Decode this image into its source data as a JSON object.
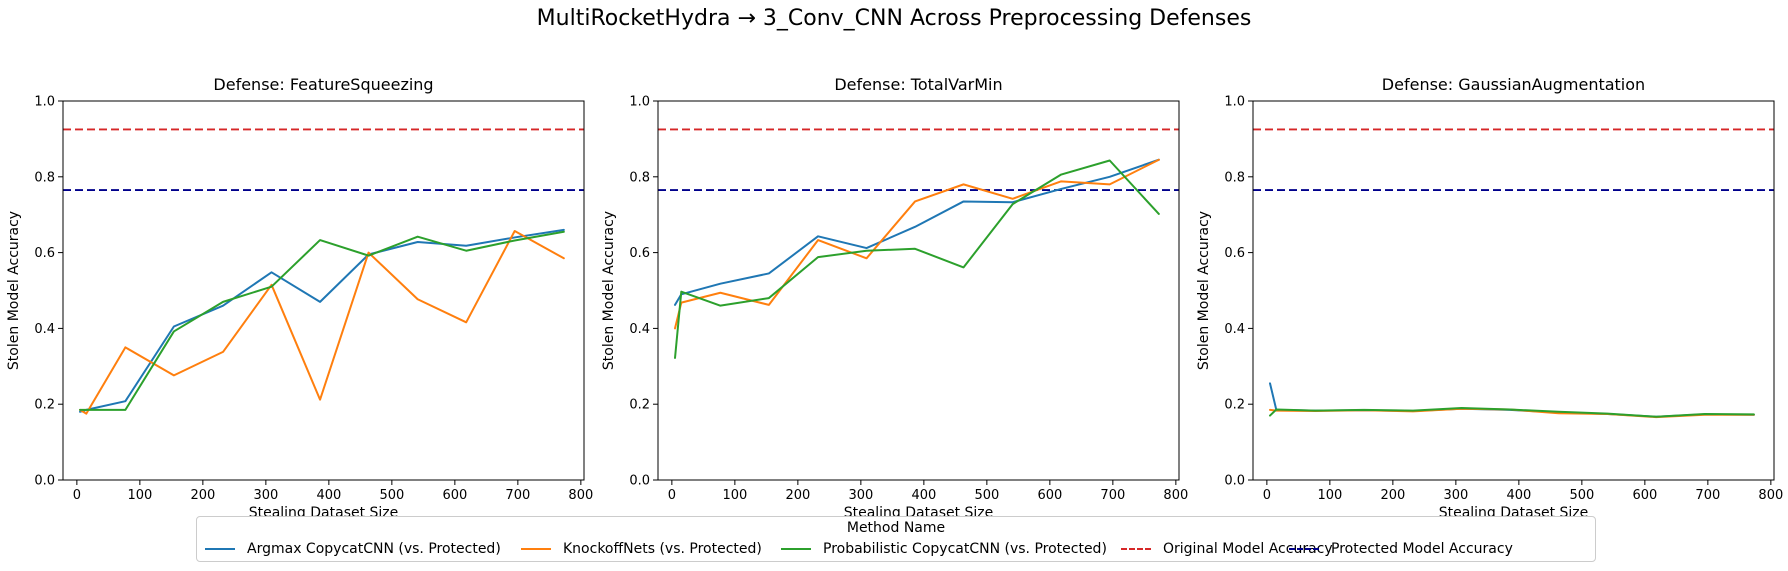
{
  "figure": {
    "suptitle": "MultiRocketHydra → 3_Conv_CNN Across Preprocessing Defenses"
  },
  "legend": {
    "title": "Method Name",
    "placement": "bottom-center",
    "entries": [
      {
        "label": "Argmax CopycatCNN (vs. Protected)",
        "color": "#1f77b4",
        "style": "solid"
      },
      {
        "label": "KnockoffNets (vs. Protected)",
        "color": "#ff7f0e",
        "style": "solid"
      },
      {
        "label": "Probabilistic CopycatCNN (vs. Protected)",
        "color": "#2ca02c",
        "style": "solid"
      },
      {
        "label": "Original Model Accuracy",
        "color": "#d62728",
        "style": "dashed"
      },
      {
        "label": "Protected Model Accuracy",
        "color": "#00008b",
        "style": "dashed"
      }
    ]
  },
  "chart_data": [
    {
      "type": "line",
      "title": "Defense: FeatureSqueezing",
      "xlabel": "Stealing Dataset Size",
      "ylabel": "Stolen Model Accuracy",
      "xlim": [
        -22,
        805
      ],
      "ylim": [
        0,
        1
      ],
      "xticks": [
        0,
        100,
        200,
        300,
        400,
        500,
        600,
        700,
        800
      ],
      "yticks": [
        0.0,
        0.2,
        0.4,
        0.6,
        0.8,
        1.0
      ],
      "grid": false,
      "reference_lines": [
        {
          "name": "Original Model Accuracy",
          "y": 0.925,
          "color": "#d62728"
        },
        {
          "name": "Protected Model Accuracy",
          "y": 0.765,
          "color": "#00008b"
        }
      ],
      "series": [
        {
          "name": "Argmax CopycatCNN (vs. Protected)",
          "color": "#1f77b4",
          "x": [
            5,
            15,
            77,
            154,
            232,
            309,
            386,
            463,
            541,
            618,
            695,
            773
          ],
          "y": [
            0.18,
            0.185,
            0.208,
            0.405,
            0.46,
            0.548,
            0.47,
            0.595,
            0.628,
            0.618,
            0.64,
            0.66
          ]
        },
        {
          "name": "KnockoffNets (vs. Protected)",
          "color": "#ff7f0e",
          "x": [
            5,
            15,
            77,
            154,
            232,
            309,
            386,
            463,
            541,
            618,
            695,
            773
          ],
          "y": [
            0.185,
            0.175,
            0.35,
            0.276,
            0.338,
            0.515,
            0.212,
            0.6,
            0.477,
            0.416,
            0.657,
            0.585
          ]
        },
        {
          "name": "Probabilistic CopycatCNN (vs. Protected)",
          "color": "#2ca02c",
          "x": [
            5,
            15,
            77,
            154,
            232,
            309,
            386,
            463,
            541,
            618,
            695,
            773
          ],
          "y": [
            0.185,
            0.185,
            0.185,
            0.392,
            0.47,
            0.51,
            0.633,
            0.592,
            0.642,
            0.605,
            0.632,
            0.655
          ]
        }
      ]
    },
    {
      "type": "line",
      "title": "Defense: TotalVarMin",
      "xlabel": "Stealing Dataset Size",
      "ylabel": "Stolen Model Accuracy",
      "xlim": [
        -22,
        805
      ],
      "ylim": [
        0,
        1
      ],
      "xticks": [
        0,
        100,
        200,
        300,
        400,
        500,
        600,
        700,
        800
      ],
      "yticks": [
        0.0,
        0.2,
        0.4,
        0.6,
        0.8,
        1.0
      ],
      "grid": false,
      "reference_lines": [
        {
          "name": "Original Model Accuracy",
          "y": 0.925,
          "color": "#d62728"
        },
        {
          "name": "Protected Model Accuracy",
          "y": 0.765,
          "color": "#00008b"
        }
      ],
      "series": [
        {
          "name": "Argmax CopycatCNN (vs. Protected)",
          "color": "#1f77b4",
          "x": [
            5,
            15,
            77,
            154,
            232,
            309,
            386,
            463,
            541,
            618,
            695,
            773
          ],
          "y": [
            0.462,
            0.49,
            0.518,
            0.545,
            0.643,
            0.612,
            0.668,
            0.735,
            0.733,
            0.768,
            0.8,
            0.845
          ]
        },
        {
          "name": "KnockoffNets (vs. Protected)",
          "color": "#ff7f0e",
          "x": [
            5,
            15,
            77,
            154,
            232,
            309,
            386,
            463,
            541,
            618,
            695,
            773
          ],
          "y": [
            0.4,
            0.468,
            0.494,
            0.462,
            0.633,
            0.585,
            0.735,
            0.78,
            0.742,
            0.788,
            0.78,
            0.845
          ]
        },
        {
          "name": "Probabilistic CopycatCNN (vs. Protected)",
          "color": "#2ca02c",
          "x": [
            5,
            15,
            77,
            154,
            232,
            309,
            386,
            463,
            541,
            618,
            695,
            773
          ],
          "y": [
            0.322,
            0.497,
            0.46,
            0.48,
            0.588,
            0.605,
            0.61,
            0.561,
            0.728,
            0.806,
            0.843,
            0.702
          ]
        }
      ]
    },
    {
      "type": "line",
      "title": "Defense: GaussianAugmentation",
      "xlabel": "Stealing Dataset Size",
      "ylabel": "Stolen Model Accuracy",
      "xlim": [
        -22,
        805
      ],
      "ylim": [
        0,
        1
      ],
      "xticks": [
        0,
        100,
        200,
        300,
        400,
        500,
        600,
        700,
        800
      ],
      "yticks": [
        0.0,
        0.2,
        0.4,
        0.6,
        0.8,
        1.0
      ],
      "grid": false,
      "reference_lines": [
        {
          "name": "Original Model Accuracy",
          "y": 0.925,
          "color": "#d62728"
        },
        {
          "name": "Protected Model Accuracy",
          "y": 0.765,
          "color": "#00008b"
        }
      ],
      "series": [
        {
          "name": "Argmax CopycatCNN (vs. Protected)",
          "color": "#1f77b4",
          "x": [
            5,
            15,
            77,
            154,
            232,
            309,
            386,
            463,
            541,
            618,
            695,
            773
          ],
          "y": [
            0.255,
            0.185,
            0.183,
            0.184,
            0.182,
            0.188,
            0.185,
            0.178,
            0.174,
            0.167,
            0.173,
            0.172
          ]
        },
        {
          "name": "KnockoffNets (vs. Protected)",
          "color": "#ff7f0e",
          "x": [
            5,
            15,
            77,
            154,
            232,
            309,
            386,
            463,
            541,
            618,
            695,
            773
          ],
          "y": [
            0.185,
            0.183,
            0.182,
            0.184,
            0.181,
            0.188,
            0.186,
            0.176,
            0.174,
            0.166,
            0.172,
            0.172
          ]
        },
        {
          "name": "Probabilistic CopycatCNN (vs. Protected)",
          "color": "#2ca02c",
          "x": [
            5,
            15,
            77,
            154,
            232,
            309,
            386,
            463,
            541,
            618,
            695,
            773
          ],
          "y": [
            0.17,
            0.186,
            0.183,
            0.185,
            0.183,
            0.19,
            0.186,
            0.18,
            0.175,
            0.167,
            0.174,
            0.173
          ]
        }
      ]
    }
  ]
}
